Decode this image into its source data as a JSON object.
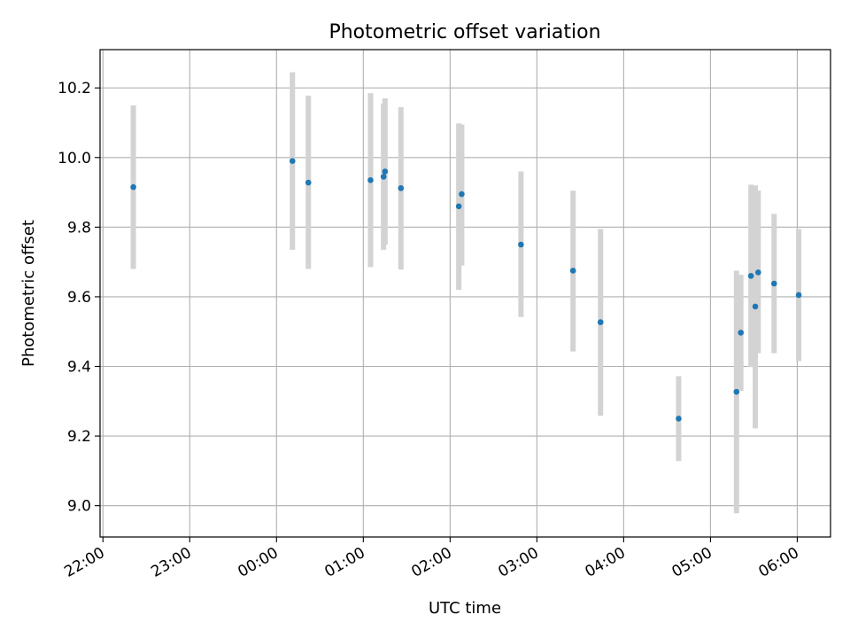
{
  "chart_data": {
    "type": "scatter",
    "title": "Photometric offset variation",
    "xlabel": "UTC time",
    "ylabel": "Photometric offset",
    "grid": true,
    "xlim": [
      "21:58",
      "06:23"
    ],
    "ylim": [
      8.91,
      10.31
    ],
    "x_ticks": [
      "22:00",
      "23:00",
      "00:00",
      "01:00",
      "02:00",
      "03:00",
      "04:00",
      "05:00",
      "06:00"
    ],
    "y_ticks": [
      "9.0",
      "9.2",
      "9.4",
      "9.6",
      "9.8",
      "10.0",
      "10.2"
    ],
    "point_color": "#1f77b4",
    "errorbar_color": "#d3d3d3",
    "points": [
      {
        "x": "22:21",
        "y": 9.915,
        "low": 9.68,
        "high": 10.15
      },
      {
        "x": "00:11",
        "y": 9.99,
        "low": 9.735,
        "high": 10.245
      },
      {
        "x": "00:22",
        "y": 9.928,
        "low": 9.68,
        "high": 10.178
      },
      {
        "x": "01:05",
        "y": 9.935,
        "low": 9.685,
        "high": 10.185
      },
      {
        "x": "01:14",
        "y": 9.945,
        "low": 9.735,
        "high": 10.155
      },
      {
        "x": "01:15",
        "y": 9.96,
        "low": 9.75,
        "high": 10.17
      },
      {
        "x": "01:26",
        "y": 9.912,
        "low": 9.678,
        "high": 10.145
      },
      {
        "x": "02:06",
        "y": 9.86,
        "low": 9.62,
        "high": 10.098
      },
      {
        "x": "02:08",
        "y": 9.895,
        "low": 9.69,
        "high": 10.095
      },
      {
        "x": "02:49",
        "y": 9.75,
        "low": 9.542,
        "high": 9.96
      },
      {
        "x": "03:25",
        "y": 9.675,
        "low": 9.443,
        "high": 9.905
      },
      {
        "x": "03:44",
        "y": 9.527,
        "low": 9.258,
        "high": 9.795
      },
      {
        "x": "04:38",
        "y": 9.25,
        "low": 9.128,
        "high": 9.372
      },
      {
        "x": "05:18",
        "y": 9.327,
        "low": 8.978,
        "high": 9.675
      },
      {
        "x": "05:21",
        "y": 9.497,
        "low": 9.33,
        "high": 9.663
      },
      {
        "x": "05:28",
        "y": 9.66,
        "low": 9.398,
        "high": 9.922
      },
      {
        "x": "05:31",
        "y": 9.572,
        "low": 9.222,
        "high": 9.92
      },
      {
        "x": "05:33",
        "y": 9.67,
        "low": 9.438,
        "high": 9.905
      },
      {
        "x": "05:44",
        "y": 9.638,
        "low": 9.438,
        "high": 9.838
      },
      {
        "x": "06:01",
        "y": 9.605,
        "low": 9.415,
        "high": 9.795
      }
    ]
  }
}
